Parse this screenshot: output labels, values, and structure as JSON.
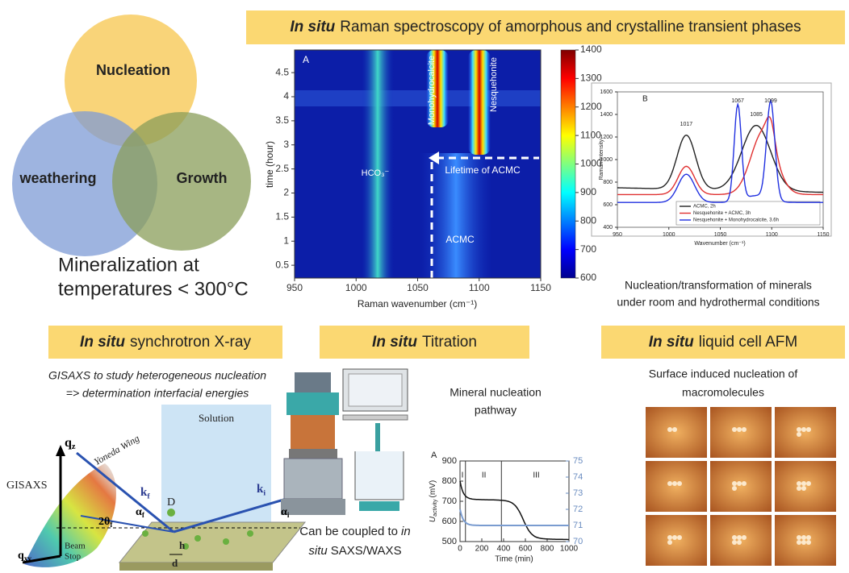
{
  "venn": {
    "labels": [
      "Nucleation",
      "weathering",
      "Growth"
    ],
    "caption": [
      "Mineralization at",
      "temperatures < 300°C"
    ]
  },
  "raman": {
    "banner": {
      "emphasis": "In situ",
      "rest": "Raman spectroscopy of amorphous and crystalline transient phases"
    },
    "map": {
      "panel": "A",
      "x_label": "Raman wavenumber (cm⁻¹)",
      "y_label": "time (hour)",
      "x_ticks": [
        950,
        1000,
        1050,
        1100,
        1150
      ],
      "y_ticks": [
        0.5,
        1,
        1.5,
        2,
        2.5,
        3,
        3.5,
        4,
        4.5
      ],
      "colorbar_ticks": [
        600,
        700,
        800,
        900,
        1000,
        1100,
        1200,
        1300,
        1400
      ],
      "annotations": [
        "Monohydrocalcite",
        "Nesquehonite",
        "HCO₃⁻",
        "Lifetime of ACMC",
        "ACMC"
      ]
    },
    "spectra": {
      "panel": "B",
      "x_label": "Wavenumber (cm⁻¹)",
      "y_label": "Raman Intensity",
      "x_ticks": [
        950,
        1000,
        1050,
        1100,
        1150
      ],
      "y_ticks": [
        400,
        600,
        800,
        1000,
        1200,
        1400,
        1600
      ],
      "peaks": [
        1017,
        1067,
        1085,
        1099
      ],
      "legend": [
        "ACMC, 2h",
        "Nesquehonite + ACMC, 3h",
        "Nesquehonite + Monohydrocalcite, 3.6h"
      ]
    },
    "caption": [
      "Nucleation/transformation of minerals",
      "under room and hydrothermal conditions"
    ]
  },
  "synchrotron": {
    "banner": {
      "emphasis": "In situ",
      "rest": "synchrotron X-ray"
    },
    "description": [
      "GISAXS to study heterogeneous nucleation",
      "=> determination interfacial energies"
    ],
    "diagram": {
      "solution": "Solution",
      "gisaxs": "GISAXS",
      "yoneda": "Yoneda Wing",
      "qz": {
        "base": "q",
        "sub": "z"
      },
      "qxy": {
        "base": "q",
        "sub": "xy"
      },
      "kf": {
        "base": "k",
        "sub": "f"
      },
      "ki": {
        "base": "k",
        "sub": "i"
      },
      "af": {
        "base": "α",
        "sub": "f"
      },
      "ai": {
        "base": "α",
        "sub": "i"
      },
      "tf": {
        "base": "2θ",
        "sub": "f"
      },
      "D": "D",
      "h": "h",
      "d": "d",
      "beam_stop": [
        "Beam",
        "Stop"
      ]
    }
  },
  "titration": {
    "banner": {
      "emphasis": "In situ",
      "rest": "Titration"
    },
    "note": {
      "line1": "Can be coupled to",
      "line1_em": "in",
      "line2_em": "situ",
      "line2": "SAXS/WAXS"
    },
    "chart": {
      "title": [
        "Mineral nucleation",
        "pathway"
      ],
      "panel": "A",
      "y_label": {
        "base": "U",
        "sub": "activity",
        "unit": "(mV)"
      },
      "x_label": "Time (min)",
      "x_ticks": [
        0,
        200,
        400,
        600,
        800,
        1000
      ],
      "y_ticks": [
        500,
        600,
        700,
        800,
        900
      ],
      "y2_ticks": [
        70,
        71,
        72,
        73,
        74,
        75
      ],
      "phases": [
        "I",
        "II",
        "III"
      ]
    }
  },
  "afm": {
    "banner": {
      "emphasis": "In situ",
      "rest": "liquid cell AFM"
    },
    "description": [
      "Surface induced nucleation of",
      "macromolecules"
    ]
  }
}
